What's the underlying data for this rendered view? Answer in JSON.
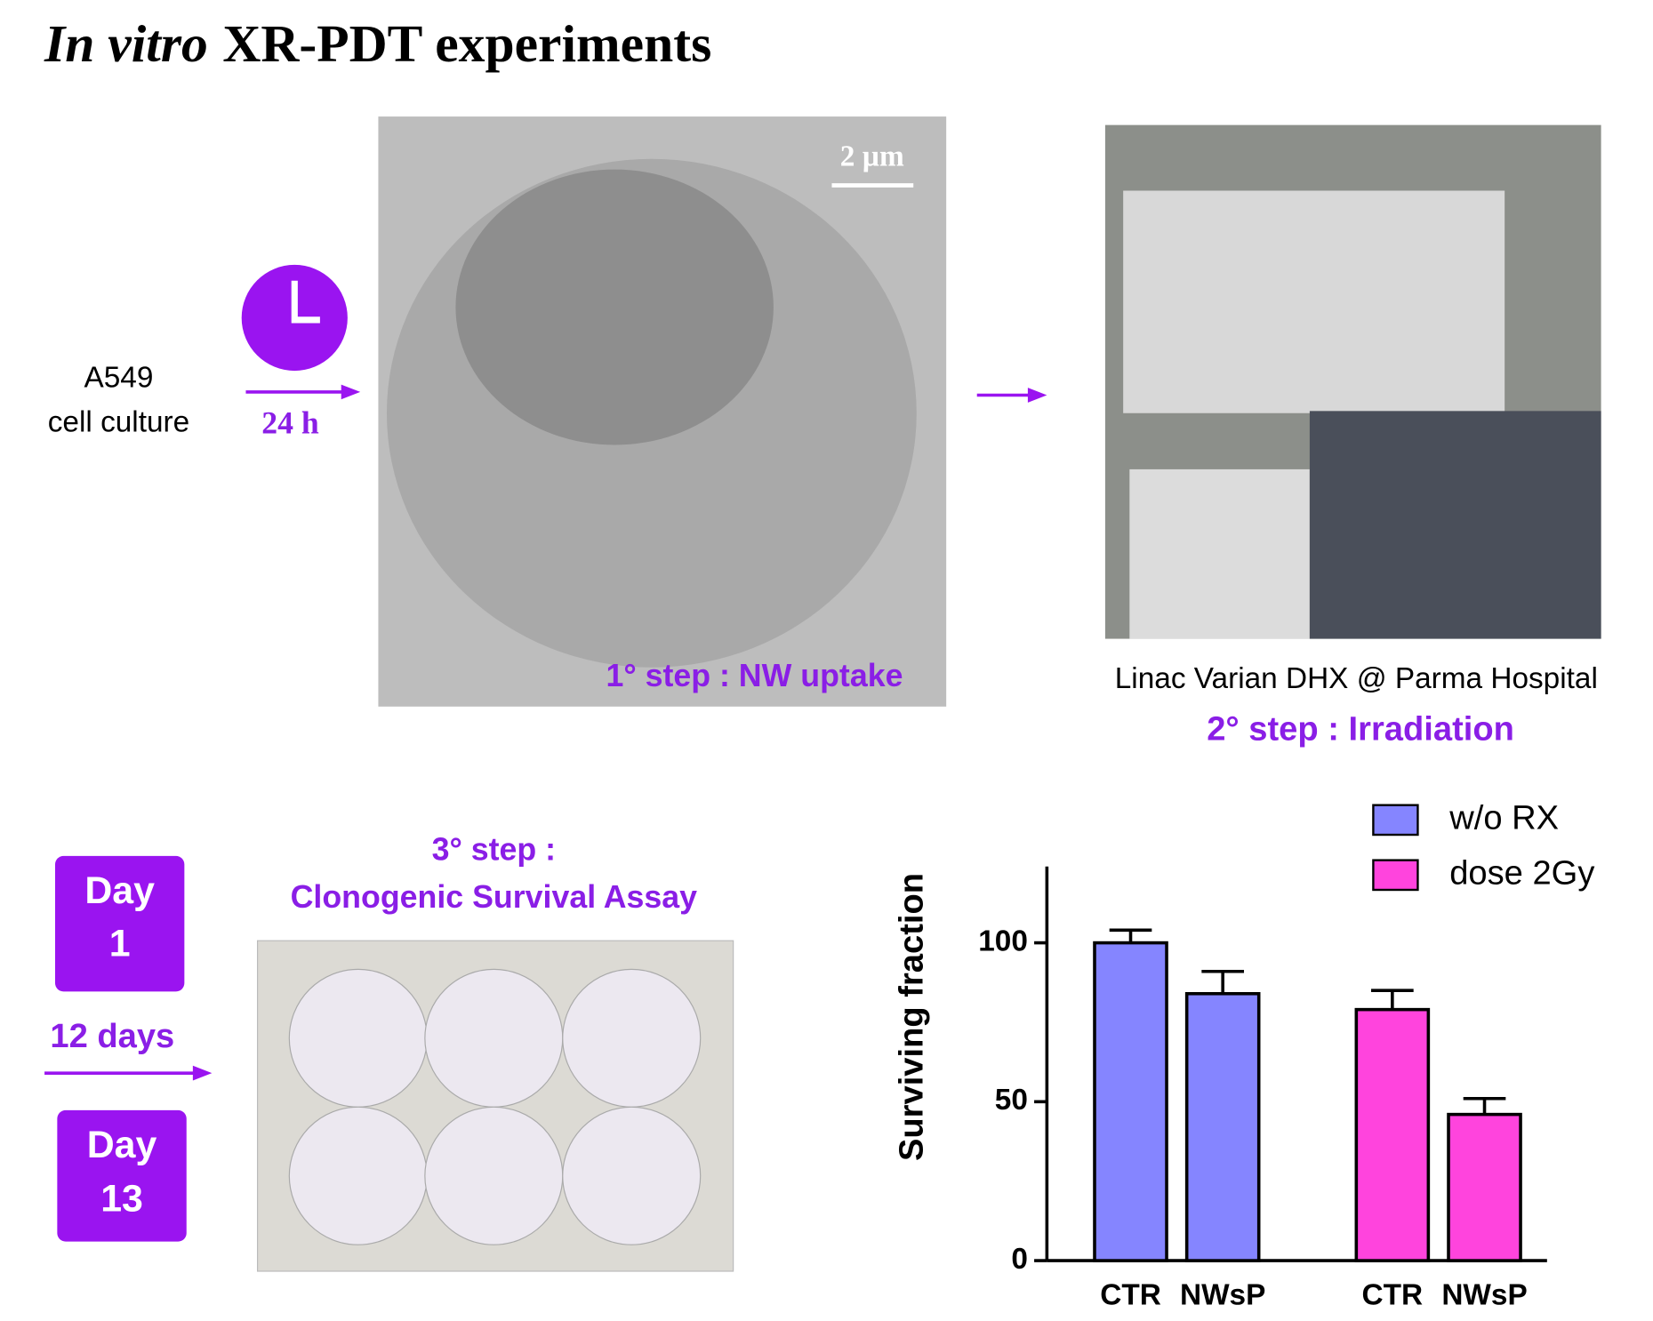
{
  "header": {
    "title_italic": "In vitro",
    "title": "XR-PDT experiments"
  },
  "step0": {
    "line1": "A549",
    "line2": "cell culture",
    "time": "24 h"
  },
  "step1": {
    "scale": "2 µm",
    "label": "1° step : NW uptake"
  },
  "step2": {
    "caption": "Linac Varian DHX @ Parma Hospital",
    "label": "2° step : Irradiation"
  },
  "step3": {
    "label1": "3° step :",
    "label2": "Clonogenic Survival Assay",
    "day1": [
      "Day",
      "1"
    ],
    "interval": "12 days",
    "day2": [
      "Day",
      "13"
    ]
  },
  "chart_data": {
    "type": "bar",
    "ylabel": "Surviving  fraction",
    "categories": [
      "CTR",
      "NWsP"
    ],
    "series": [
      {
        "name": "w/o RX",
        "color": "#8585ff",
        "values": [
          100,
          84
        ],
        "errors": [
          4,
          7
        ]
      },
      {
        "name": "dose 2Gy",
        "color": "#ff44dd",
        "values": [
          79,
          46
        ],
        "errors": [
          6,
          5
        ]
      }
    ],
    "ylim": [
      0,
      124
    ],
    "yticks": [
      0,
      50,
      100
    ],
    "legend": "top-right"
  }
}
